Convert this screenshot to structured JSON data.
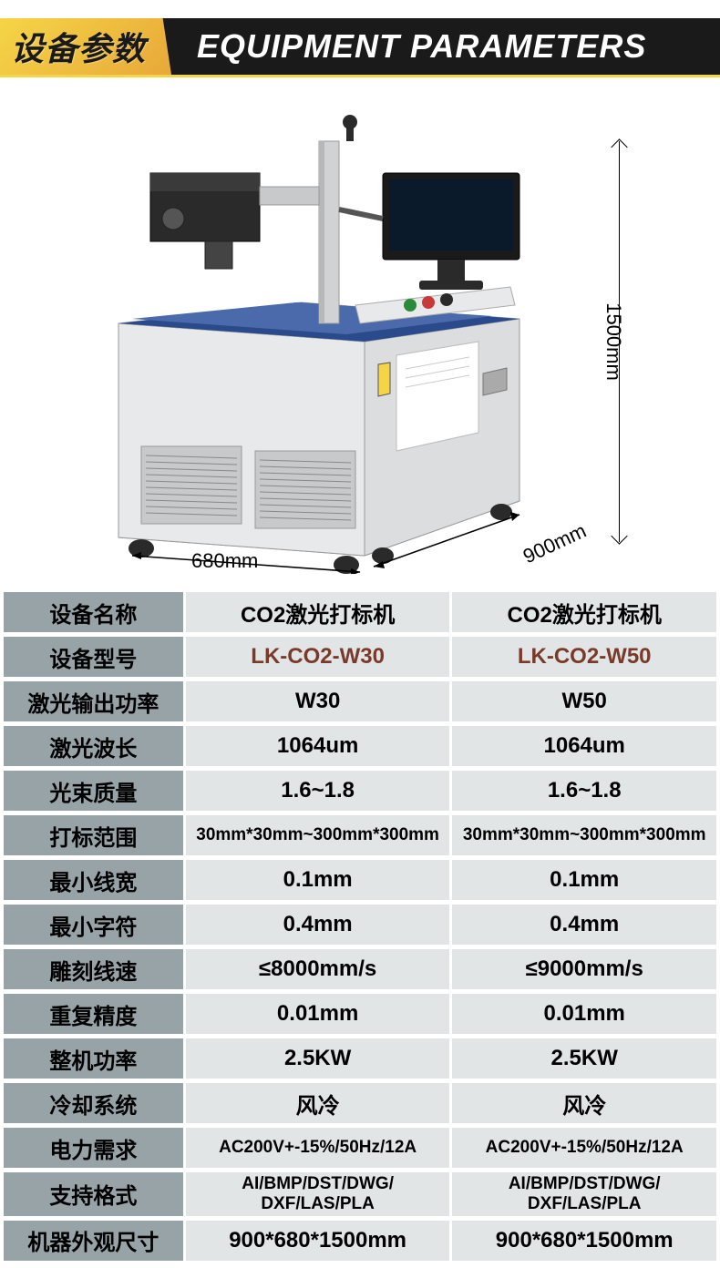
{
  "header": {
    "cn": "设备参数",
    "en": "EQUIPMENT PARAMETERS"
  },
  "dimensions": {
    "height": "1500mm",
    "width": "680mm",
    "depth": "900mm"
  },
  "colors": {
    "header_bg": "#1a1a1a",
    "header_cn_bg_start": "#f5d547",
    "header_cn_bg_end": "#e8a838",
    "label_bg": "#98a3a8",
    "value_bg": "#e1e5e6",
    "model_text": "#7a3a2a",
    "machine_body": "#f5f6f7",
    "machine_accent": "#2b4a8c",
    "machine_dark": "#2a2a2a"
  },
  "specs": [
    {
      "label": "设备名称",
      "v1": "CO2激光打标机",
      "v2": "CO2激光打标机",
      "cls": ""
    },
    {
      "label": "设备型号",
      "v1": "LK-CO2-W30",
      "v2": "LK-CO2-W50",
      "cls": "model"
    },
    {
      "label": "激光输出功率",
      "v1": "W30",
      "v2": "W50",
      "cls": ""
    },
    {
      "label": "激光波长",
      "v1": "1064um",
      "v2": "1064um",
      "cls": ""
    },
    {
      "label": "光束质量",
      "v1": "1.6~1.8",
      "v2": "1.6~1.8",
      "cls": ""
    },
    {
      "label": "打标范围",
      "v1": "30mm*30mm~300mm*300mm",
      "v2": "30mm*30mm~300mm*300mm",
      "cls": "small"
    },
    {
      "label": "最小线宽",
      "v1": "0.1mm",
      "v2": "0.1mm",
      "cls": ""
    },
    {
      "label": "最小字符",
      "v1": "0.4mm",
      "v2": "0.4mm",
      "cls": ""
    },
    {
      "label": "雕刻线速",
      "v1": "≤8000mm/s",
      "v2": "≤9000mm/s",
      "cls": ""
    },
    {
      "label": "重复精度",
      "v1": "0.01mm",
      "v2": "0.01mm",
      "cls": ""
    },
    {
      "label": "整机功率",
      "v1": "2.5KW",
      "v2": "2.5KW",
      "cls": ""
    },
    {
      "label": "冷却系统",
      "v1": "风冷",
      "v2": "风冷",
      "cls": ""
    },
    {
      "label": "电力需求",
      "v1": "AC200V+-15%/50Hz/12A",
      "v2": "AC200V+-15%/50Hz/12A",
      "cls": "small"
    },
    {
      "label": "支持格式",
      "v1": "AI/BMP/DST/DWG/\nDXF/LAS/PLA",
      "v2": "AI/BMP/DST/DWG/\nDXF/LAS/PLA",
      "cls": "multiline"
    },
    {
      "label": "机器外观尺寸",
      "v1": "900*680*1500mm",
      "v2": "900*680*1500mm",
      "cls": ""
    }
  ]
}
